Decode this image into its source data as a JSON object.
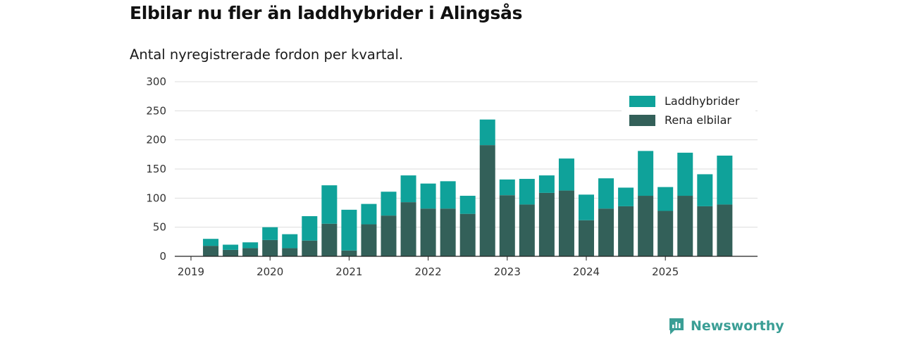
{
  "title": "Elbilar nu fler än laddhybrider i Alingsås",
  "subtitle": "Antal nyregistrerade fordon per kvartal.",
  "brand": "Newsworthy",
  "colors": {
    "laddhybrider": "#0fa29a",
    "rena_elbilar": "#336059",
    "grid": "#dddddd",
    "axis": "#222222"
  },
  "chart_data": {
    "type": "bar",
    "stacked": true,
    "x_tick_labels": [
      "2019",
      "2020",
      "2021",
      "2022",
      "2023",
      "2024",
      "2025"
    ],
    "categories": [
      "2019-Q2",
      "2019-Q3",
      "2019-Q4",
      "2020-Q1",
      "2020-Q2",
      "2020-Q3",
      "2020-Q4",
      "2021-Q1",
      "2021-Q2",
      "2021-Q3",
      "2021-Q4",
      "2022-Q1",
      "2022-Q2",
      "2022-Q3",
      "2022-Q4",
      "2023-Q1",
      "2023-Q2",
      "2023-Q3",
      "2023-Q4",
      "2024-Q1",
      "2024-Q2",
      "2024-Q3",
      "2024-Q4",
      "2025-Q1",
      "2025-Q2",
      "2025-Q3",
      "2025-Q4"
    ],
    "series": [
      {
        "name": "Rena elbilar",
        "values": [
          18,
          11,
          14,
          28,
          14,
          27,
          56,
          10,
          55,
          70,
          93,
          82,
          82,
          73,
          191,
          105,
          89,
          109,
          113,
          62,
          82,
          86,
          104,
          78,
          104,
          86,
          89
        ]
      },
      {
        "name": "Laddhybrider",
        "values": [
          12,
          9,
          10,
          22,
          24,
          42,
          66,
          70,
          35,
          41,
          46,
          43,
          47,
          31,
          44,
          27,
          44,
          30,
          55,
          44,
          52,
          32,
          77,
          41,
          74,
          55,
          84
        ]
      }
    ],
    "legend_order": [
      "Laddhybrider",
      "Rena elbilar"
    ],
    "legend_position": "top-right",
    "y_ticks": [
      0,
      50,
      100,
      150,
      200,
      250,
      300
    ],
    "ylim": [
      0,
      300
    ],
    "grid": true
  }
}
